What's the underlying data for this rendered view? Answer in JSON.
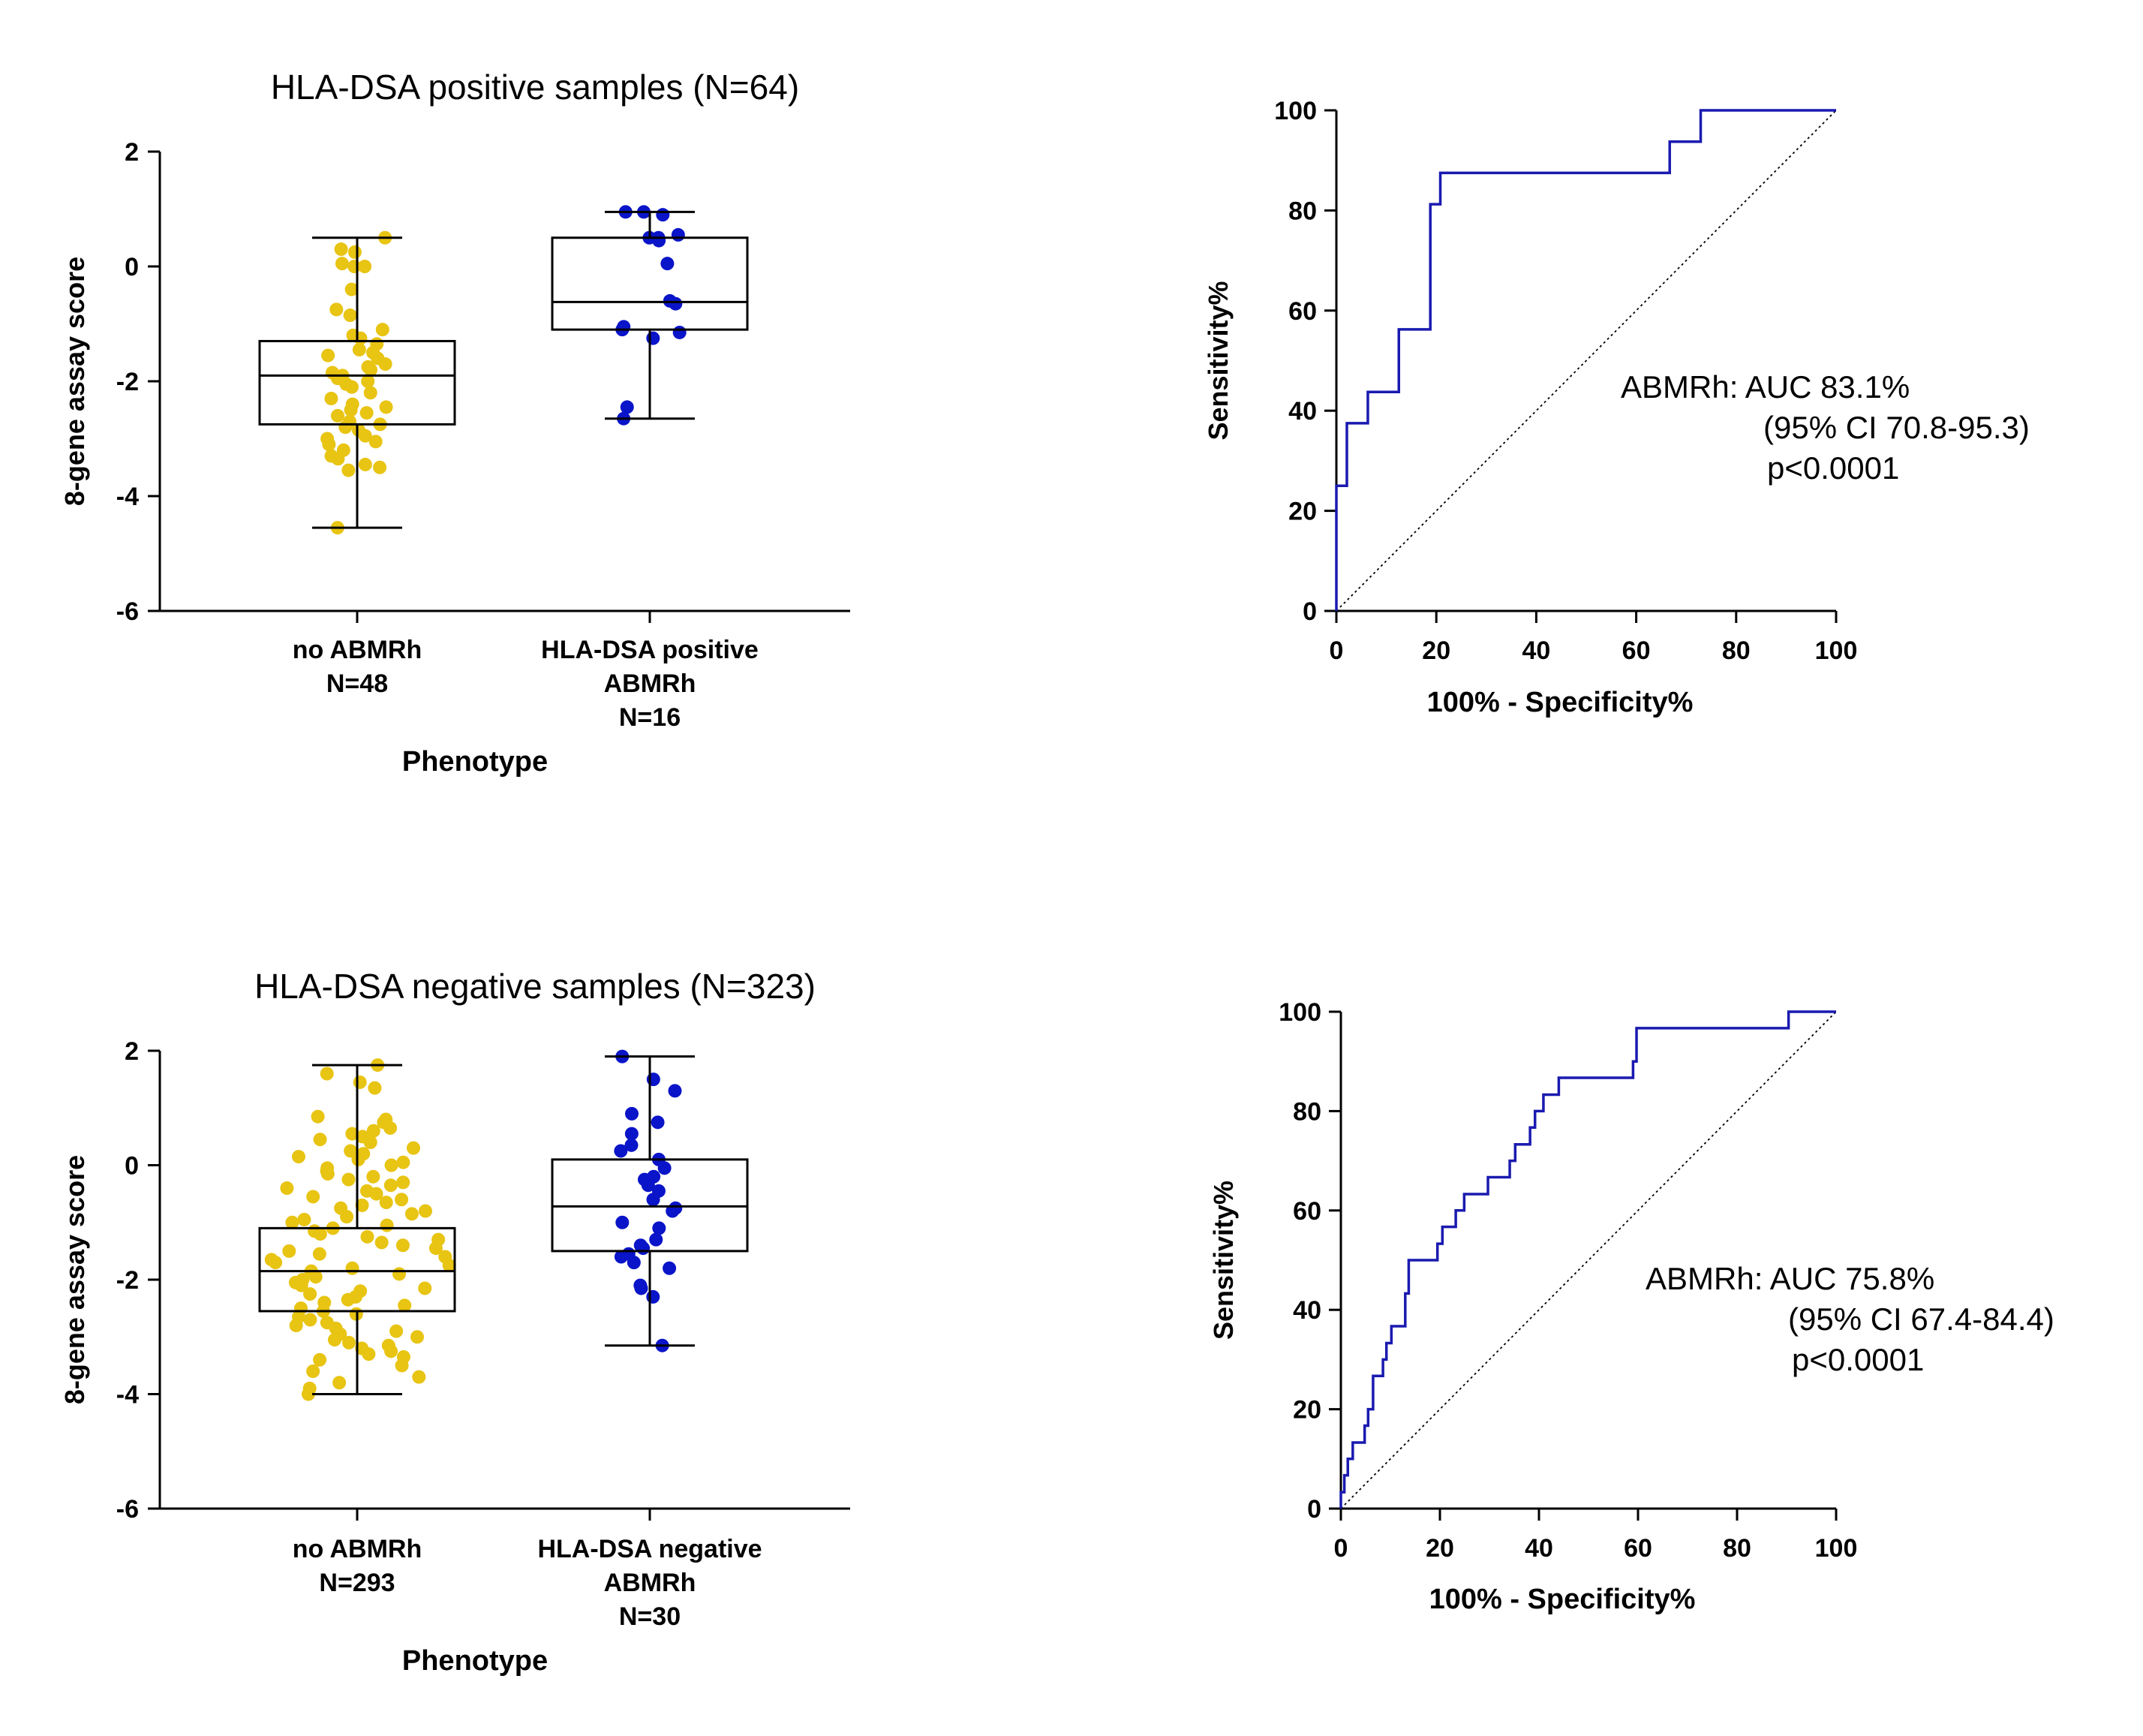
{
  "colors": {
    "no_abmrh": "#e8c413",
    "abmrh": "#0a14c8",
    "roc_line": "#1a1ab0",
    "axis": "#000000"
  },
  "chart_data": [
    {
      "type": "scatter",
      "subtype": "box-and-dot",
      "title": "HLA-DSA positive samples (N=64)",
      "xlabel": "Phenotype",
      "ylabel": "8-gene assay score",
      "ylim": [
        -6,
        2
      ],
      "yticks": [
        2,
        0,
        -2,
        -4,
        -6
      ],
      "grid": false,
      "categories": [
        {
          "lines": [
            "no ABMRh",
            "N=48"
          ]
        },
        {
          "lines": [
            "HLA-DSA positive",
            "ABMRh",
            "N=16"
          ]
        }
      ],
      "boxes": [
        {
          "min": -4.55,
          "q1": -2.75,
          "median": -1.9,
          "q3": -1.3,
          "max": 0.5
        },
        {
          "min": -2.65,
          "q1": -1.1,
          "median": -0.62,
          "q3": 0.5,
          "max": 0.95
        }
      ],
      "points": [
        [
          0.5,
          0.25,
          0.3,
          0.05,
          0.0,
          0.0,
          -0.4,
          -0.75,
          -0.85,
          -1.1,
          -1.2,
          -1.25,
          -1.35,
          -1.45,
          -1.5,
          -1.55,
          -1.6,
          -1.7,
          -1.75,
          -1.8,
          -1.85,
          -1.9,
          -1.95,
          -2.0,
          -2.05,
          -2.1,
          -2.2,
          -2.3,
          -2.4,
          -2.45,
          -2.5,
          -2.55,
          -2.6,
          -2.7,
          -2.75,
          -2.8,
          -2.85,
          -2.95,
          -3.0,
          -3.05,
          -3.1,
          -3.2,
          -3.3,
          -3.35,
          -3.45,
          -3.5,
          -3.55,
          -4.55
        ],
        [
          0.95,
          0.95,
          0.9,
          0.55,
          0.5,
          0.5,
          0.45,
          0.05,
          -0.6,
          -0.65,
          -1.05,
          -1.1,
          -1.15,
          -1.25,
          -2.45,
          -2.65
        ]
      ]
    },
    {
      "type": "line",
      "subtype": "roc",
      "xlabel": "100% - Specificity%",
      "ylabel": "Sensitivity%",
      "xlim": [
        0,
        100
      ],
      "ylim": [
        0,
        100
      ],
      "xticks": [
        0,
        20,
        40,
        60,
        80,
        100
      ],
      "yticks": [
        0,
        20,
        40,
        60,
        80,
        100
      ],
      "grid": false,
      "annotation": [
        "ABMRh: AUC 83.1%",
        "(95% CI 70.8-95.3)",
        "p<0.0001"
      ],
      "roc": {
        "x": [
          0,
          0,
          2.1,
          2.1,
          6.3,
          6.3,
          12.5,
          12.5,
          18.8,
          18.8,
          20.8,
          20.8,
          66.7,
          66.7,
          72.9,
          72.9,
          100
        ],
        "y": [
          0,
          25,
          25,
          37.5,
          37.5,
          43.75,
          43.75,
          56.25,
          56.25,
          81.25,
          81.25,
          87.5,
          87.5,
          93.75,
          93.75,
          100,
          100
        ]
      }
    },
    {
      "type": "scatter",
      "subtype": "box-and-dot",
      "title": "HLA-DSA negative samples (N=323)",
      "xlabel": "Phenotype",
      "ylabel": "8-gene assay score",
      "ylim": [
        -6,
        2
      ],
      "yticks": [
        2,
        0,
        -2,
        -4,
        -6
      ],
      "grid": false,
      "categories": [
        {
          "lines": [
            "no ABMRh",
            "N=293"
          ]
        },
        {
          "lines": [
            "HLA-DSA negative",
            "ABMRh",
            "N=30"
          ]
        }
      ],
      "boxes": [
        {
          "min": -4.0,
          "q1": -2.55,
          "median": -1.85,
          "q3": -1.1,
          "max": 1.75
        },
        {
          "min": -3.15,
          "q1": -1.5,
          "median": -0.72,
          "q3": 0.1,
          "max": 1.9
        }
      ],
      "points": [
        [
          1.75,
          1.6,
          1.45,
          1.35,
          0.85,
          0.8,
          0.75,
          0.65,
          0.6,
          0.55,
          0.5,
          0.45,
          0.4,
          0.3,
          0.25,
          0.2,
          0.15,
          0.1,
          0.05,
          0.0,
          -0.05,
          -0.1,
          -0.15,
          -0.2,
          -0.25,
          -0.3,
          -0.35,
          -0.4,
          -0.45,
          -0.5,
          -0.55,
          -0.6,
          -0.65,
          -0.7,
          -0.75,
          -0.8,
          -0.85,
          -0.9,
          -0.95,
          -1.0,
          -1.05,
          -1.1,
          -1.15,
          -1.2,
          -1.25,
          -1.3,
          -1.35,
          -1.4,
          -1.45,
          -1.5,
          -1.55,
          -1.6,
          -1.65,
          -1.7,
          -1.75,
          -1.8,
          -1.85,
          -1.9,
          -1.95,
          -2.0,
          -2.05,
          -2.1,
          -2.15,
          -2.2,
          -2.25,
          -2.3,
          -2.35,
          -2.4,
          -2.45,
          -2.5,
          -2.55,
          -2.6,
          -2.65,
          -2.7,
          -2.75,
          -2.8,
          -2.85,
          -2.9,
          -2.95,
          -3.0,
          -3.05,
          -3.1,
          -3.15,
          -3.2,
          -3.25,
          -3.3,
          -3.35,
          -3.4,
          -3.5,
          -3.6,
          -3.7,
          -3.8,
          -3.9,
          -4.0
        ],
        [
          1.9,
          1.5,
          1.3,
          0.9,
          0.75,
          0.55,
          0.35,
          0.25,
          0.1,
          -0.05,
          -0.2,
          -0.25,
          -0.35,
          -0.45,
          -0.6,
          -0.75,
          -0.8,
          -1.0,
          -1.1,
          -1.3,
          -1.4,
          -1.45,
          -1.55,
          -1.6,
          -1.7,
          -1.8,
          -2.1,
          -2.15,
          -2.3,
          -3.15
        ]
      ]
    },
    {
      "type": "line",
      "subtype": "roc",
      "xlabel": "100% - Specificity%",
      "ylabel": "Sensitivity%",
      "xlim": [
        0,
        100
      ],
      "ylim": [
        0,
        100
      ],
      "xticks": [
        0,
        20,
        40,
        60,
        80,
        100
      ],
      "yticks": [
        0,
        20,
        40,
        60,
        80,
        100
      ],
      "grid": false,
      "annotation": [
        "ABMRh: AUC 75.8%",
        "(95% CI 67.4-84.4)",
        "p<0.0001"
      ],
      "roc": {
        "x": [
          0,
          0,
          0.7,
          0.7,
          1.4,
          1.4,
          2.4,
          2.4,
          4.8,
          4.8,
          5.5,
          5.5,
          6.5,
          6.5,
          8.5,
          8.5,
          9.2,
          9.2,
          10.2,
          10.2,
          13.0,
          13.0,
          13.7,
          13.7,
          19.5,
          19.5,
          20.5,
          20.5,
          23.2,
          23.2,
          24.9,
          24.9,
          29.7,
          29.7,
          34.1,
          34.1,
          35.2,
          35.2,
          38.2,
          38.2,
          39.2,
          39.2,
          40.9,
          40.9,
          44.0,
          44.0,
          59.0,
          59.0,
          59.7,
          59.7,
          90.4,
          90.4,
          100
        ],
        "y": [
          0,
          3.3,
          3.3,
          6.7,
          6.7,
          10.0,
          10.0,
          13.3,
          13.3,
          16.7,
          16.7,
          20.0,
          20.0,
          26.7,
          26.7,
          30.0,
          30.0,
          33.3,
          33.3,
          36.7,
          36.7,
          43.3,
          43.3,
          50.0,
          50.0,
          53.3,
          53.3,
          56.7,
          56.7,
          60.0,
          60.0,
          63.3,
          63.3,
          66.7,
          66.7,
          70.0,
          70.0,
          73.3,
          73.3,
          76.7,
          76.7,
          80.0,
          80.0,
          83.3,
          83.3,
          86.7,
          86.7,
          90.0,
          90.0,
          96.7,
          96.7,
          100,
          100
        ]
      }
    }
  ]
}
